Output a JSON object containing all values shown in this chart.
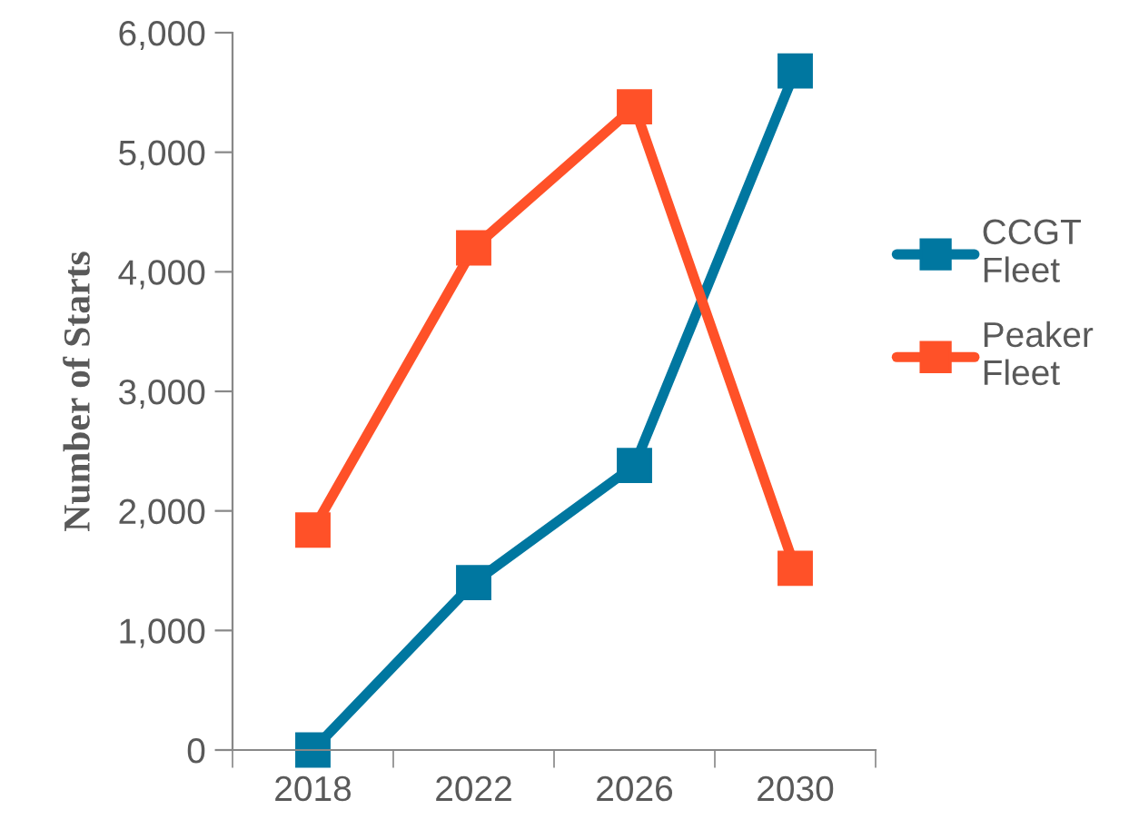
{
  "chart_data": {
    "type": "line",
    "ylabel": "Number of Starts",
    "categories": [
      "2018",
      "2022",
      "2026",
      "2030"
    ],
    "series": [
      {
        "name": "CCGT Fleet",
        "color": "#0077a0",
        "values": [
          0,
          1400,
          2380,
          5680
        ]
      },
      {
        "name": "Peaker Fleet",
        "color": "#ff5128",
        "values": [
          1840,
          4200,
          5380,
          1520
        ]
      }
    ],
    "ylim": [
      0,
      6000
    ],
    "yticks": [
      {
        "value": 0,
        "label": "0"
      },
      {
        "value": 1000,
        "label": "1,000"
      },
      {
        "value": 2000,
        "label": "2,000"
      },
      {
        "value": 3000,
        "label": "3,000"
      },
      {
        "value": 4000,
        "label": "4,000"
      },
      {
        "value": 5000,
        "label": "5,000"
      },
      {
        "value": 6000,
        "label": "6,000"
      }
    ],
    "grid": false,
    "legend": "right",
    "marker": "square",
    "line_style": "solid"
  }
}
